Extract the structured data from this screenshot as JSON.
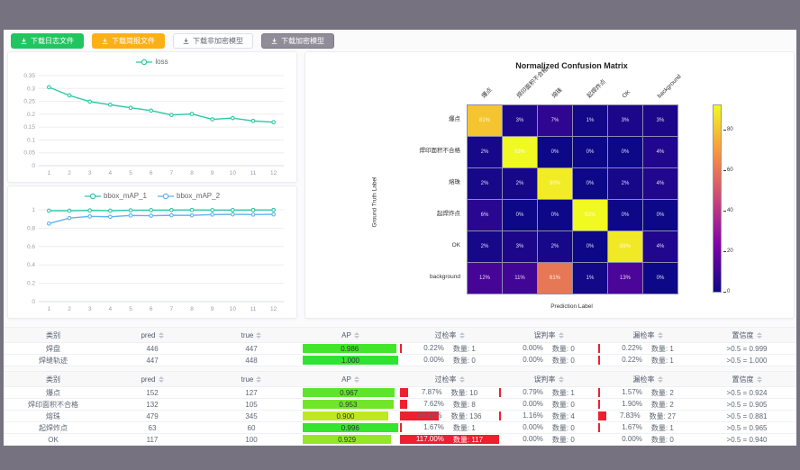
{
  "frame": {
    "bar_color": "#767280"
  },
  "toolbar": {
    "buttons": [
      {
        "label": "下载日志文件",
        "variant": "green"
      },
      {
        "label": "下载简报文件",
        "variant": "amber"
      },
      {
        "label": "下载非加密模型",
        "variant": "plain"
      },
      {
        "label": "下载加密模型",
        "variant": "gray"
      }
    ],
    "icon": "download-icon"
  },
  "colors": {
    "teal_line": "#2cc7a6",
    "blue_line": "#5cb3f0",
    "rate_bar_red": "#ee202f",
    "ap_green": "#2fe42d",
    "ap_yellow": "#d8ea1f"
  },
  "chart_data": [
    {
      "type": "line",
      "title": "loss",
      "x": [
        1,
        2,
        3,
        4,
        5,
        6,
        7,
        8,
        9,
        10,
        11,
        12
      ],
      "series": [
        {
          "name": "loss",
          "color": "#2cc7a6",
          "values": [
            0.305,
            0.273,
            0.249,
            0.237,
            0.225,
            0.214,
            0.197,
            0.201,
            0.18,
            0.185,
            0.174,
            0.169
          ]
        }
      ],
      "ylim": [
        0,
        0.35
      ],
      "yticks": [
        "0",
        "0.05",
        "0.1",
        "0.15",
        "0.2",
        "0.25",
        "0.3",
        "0.35"
      ],
      "grid": true,
      "legend_position": "top"
    },
    {
      "type": "line",
      "title": "bbox_mAP",
      "x": [
        1,
        2,
        3,
        4,
        5,
        6,
        7,
        8,
        9,
        10,
        11,
        12
      ],
      "series": [
        {
          "name": "bbox_mAP_1",
          "color": "#2cc7a6",
          "values": [
            0.99,
            0.99,
            0.993,
            0.99,
            0.994,
            0.996,
            0.997,
            0.998,
            0.997,
            0.997,
            0.998,
            0.998
          ]
        },
        {
          "name": "bbox_mAP_2",
          "color": "#5cb3f0",
          "values": [
            0.85,
            0.91,
            0.928,
            0.924,
            0.938,
            0.936,
            0.94,
            0.939,
            0.948,
            0.95,
            0.948,
            0.95
          ]
        }
      ],
      "ylim": [
        0,
        1
      ],
      "yticks": [
        "0",
        "0.2",
        "0.4",
        "0.6",
        "0.8",
        "1"
      ],
      "grid": true,
      "legend_position": "top"
    },
    {
      "type": "heatmap",
      "title": "Normalized Confusion Matrix",
      "xlabel": "Prediction Label",
      "ylabel": "Ground Truth Label",
      "labels": [
        "爆点",
        "焊印面积不合格",
        "熔珠",
        "起焊炸点",
        "OK",
        "background"
      ],
      "matrix": [
        [
          81,
          3,
          7,
          1,
          3,
          3
        ],
        [
          2,
          93,
          0,
          0,
          0,
          4
        ],
        [
          2,
          2,
          90,
          0,
          2,
          4
        ],
        [
          6,
          0,
          0,
          93,
          0,
          0
        ],
        [
          2,
          3,
          2,
          0,
          89,
          4
        ],
        [
          12,
          11,
          61,
          1,
          13,
          0
        ]
      ],
      "cell_suffix": "%",
      "vmax": 93,
      "colormap": "plasma",
      "colorbar_ticks": [
        0,
        20,
        40,
        60,
        80
      ]
    }
  ],
  "tables": [
    {
      "headers": [
        {
          "label": "类别",
          "sortable": false
        },
        {
          "label": "pred",
          "sortable": true
        },
        {
          "label": "true",
          "sortable": true
        },
        {
          "label": "AP",
          "sortable": true
        },
        {
          "label": "过检率",
          "sortable": true
        },
        {
          "label": "误判率",
          "sortable": true
        },
        {
          "label": "漏检率",
          "sortable": true
        },
        {
          "label": "置信度",
          "sortable": true
        }
      ],
      "rows": [
        {
          "category": "焊盘",
          "pred": "446",
          "true": "447",
          "ap": "0.986",
          "over_rate": "0.22%",
          "over_count": "数量: 1",
          "misjudge_rate": "0.00%",
          "misjudge_count": "数量: 0",
          "miss_rate": "0.22%",
          "miss_count": "数量: 1",
          "confidence": ">0.5 = 0.999"
        },
        {
          "category": "焊缝轨迹",
          "pred": "447",
          "true": "448",
          "ap": "1.000",
          "over_rate": "0.00%",
          "over_count": "数量: 0",
          "misjudge_rate": "0.00%",
          "misjudge_count": "数量: 0",
          "miss_rate": "0.22%",
          "miss_count": "数量: 1",
          "confidence": ">0.5 = 1.000"
        }
      ]
    },
    {
      "headers": [
        {
          "label": "类别",
          "sortable": false
        },
        {
          "label": "pred",
          "sortable": true
        },
        {
          "label": "true",
          "sortable": true
        },
        {
          "label": "AP",
          "sortable": true
        },
        {
          "label": "过检率",
          "sortable": true
        },
        {
          "label": "误判率",
          "sortable": true
        },
        {
          "label": "漏检率",
          "sortable": true
        },
        {
          "label": "置信度",
          "sortable": true
        }
      ],
      "rows": [
        {
          "category": "爆点",
          "pred": "152",
          "true": "127",
          "ap": "0.967",
          "over_rate": "7.87%",
          "over_count": "数量: 10",
          "misjudge_rate": "0.79%",
          "misjudge_count": "数量: 1",
          "miss_rate": "1.57%",
          "miss_count": "数量: 2",
          "confidence": ">0.5 = 0.924"
        },
        {
          "category": "焊印面积不合格",
          "pred": "132",
          "true": "105",
          "ap": "0.953",
          "over_rate": "7.62%",
          "over_count": "数量: 8",
          "misjudge_rate": "0.00%",
          "misjudge_count": "数量: 0",
          "miss_rate": "1.90%",
          "miss_count": "数量: 2",
          "confidence": ">0.5 = 0.905"
        },
        {
          "category": "熔珠",
          "pred": "479",
          "true": "345",
          "ap": "0.900",
          "over_rate": "39.42%",
          "over_count": "数量: 136",
          "misjudge_rate": "1.16%",
          "misjudge_count": "数量: 4",
          "miss_rate": "7.83%",
          "miss_count": "数量: 27",
          "confidence": ">0.5 = 0.881"
        },
        {
          "category": "起焊炸点",
          "pred": "63",
          "true": "60",
          "ap": "0.996",
          "over_rate": "1.67%",
          "over_count": "数量: 1",
          "misjudge_rate": "0.00%",
          "misjudge_count": "数量: 0",
          "miss_rate": "1.67%",
          "miss_count": "数量: 1",
          "confidence": ">0.5 = 0.965"
        },
        {
          "category": "OK",
          "pred": "117",
          "true": "100",
          "ap": "0.929",
          "over_rate": "117.00%",
          "over_count": "数量: 117",
          "misjudge_rate": "0.00%",
          "misjudge_count": "数量: 0",
          "miss_rate": "0.00%",
          "miss_count": "数量: 0",
          "confidence": ">0.5 = 0.940"
        }
      ]
    }
  ]
}
